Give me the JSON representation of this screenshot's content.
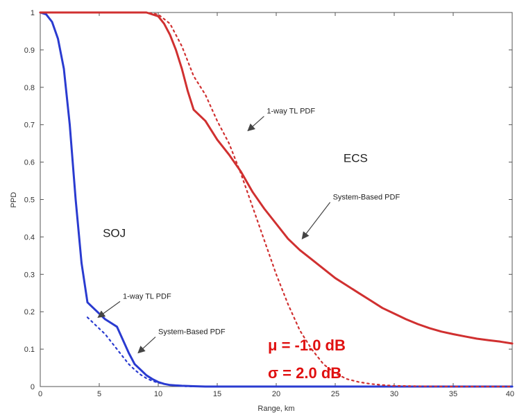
{
  "chart_data": {
    "type": "line",
    "title": "",
    "xlabel": "Range, km",
    "ylabel": "PPD",
    "xlim": [
      0,
      40
    ],
    "ylim": [
      0,
      1
    ],
    "xticks": [
      "0",
      "5",
      "10",
      "15",
      "20",
      "25",
      "30",
      "35",
      "40"
    ],
    "yticks": [
      "0",
      "0.1",
      "0.2",
      "0.3",
      "0.4",
      "0.5",
      "0.6",
      "0.7",
      "0.8",
      "0.9",
      "1"
    ],
    "grid": false,
    "series": [
      {
        "group": "SOJ",
        "style": "solid",
        "color": "#2a3bd0",
        "x": [
          0,
          0.5,
          1,
          1.5,
          2,
          2.5,
          3,
          3.5,
          4,
          4.5,
          5,
          5.5,
          6,
          6.5,
          7,
          7.5,
          8,
          8.5,
          9,
          9.5,
          10,
          10.5,
          11,
          12,
          13,
          14,
          16,
          20,
          30,
          40
        ],
        "y": [
          1,
          0.995,
          0.975,
          0.93,
          0.85,
          0.7,
          0.5,
          0.33,
          0.225,
          0.21,
          0.195,
          0.18,
          0.17,
          0.16,
          0.125,
          0.09,
          0.06,
          0.045,
          0.03,
          0.02,
          0.012,
          0.007,
          0.004,
          0.002,
          0.001,
          0,
          0,
          0,
          0,
          0
        ]
      },
      {
        "group": "SOJ",
        "style": "dotted",
        "color": "#2a3bd0",
        "x": [
          4,
          4.5,
          5,
          5.5,
          6,
          6.5,
          7,
          7.5,
          8,
          8.5,
          9,
          9.5,
          10,
          11,
          12,
          13
        ],
        "y": [
          0.185,
          0.17,
          0.155,
          0.14,
          0.12,
          0.1,
          0.08,
          0.06,
          0.045,
          0.032,
          0.022,
          0.015,
          0.01,
          0.004,
          0.001,
          0
        ]
      },
      {
        "group": "ECS",
        "style": "solid",
        "color": "#d03030",
        "x": [
          0,
          5,
          8,
          9,
          10,
          10.5,
          11,
          11.5,
          12,
          12.5,
          13,
          14,
          15,
          16,
          17,
          18,
          19,
          20,
          21,
          22,
          23,
          24,
          25,
          26,
          27,
          28,
          29,
          30,
          31,
          32,
          33,
          34,
          35,
          36,
          37,
          38,
          39,
          40
        ],
        "y": [
          1,
          1,
          1,
          1,
          0.99,
          0.97,
          0.94,
          0.9,
          0.85,
          0.79,
          0.74,
          0.71,
          0.66,
          0.62,
          0.575,
          0.52,
          0.475,
          0.435,
          0.395,
          0.365,
          0.34,
          0.315,
          0.29,
          0.27,
          0.25,
          0.23,
          0.21,
          0.195,
          0.18,
          0.167,
          0.156,
          0.147,
          0.14,
          0.134,
          0.128,
          0.124,
          0.12,
          0.115
        ]
      },
      {
        "group": "ECS",
        "style": "dotted",
        "color": "#d03030",
        "x": [
          0,
          8,
          9,
          10,
          11,
          12,
          13,
          14,
          15,
          16,
          17,
          18,
          19,
          20,
          21,
          22,
          23,
          24,
          25,
          26,
          27,
          28,
          29,
          30,
          32,
          35,
          40
        ],
        "y": [
          1,
          1,
          1,
          0.995,
          0.97,
          0.91,
          0.83,
          0.78,
          0.71,
          0.65,
          0.57,
          0.48,
          0.39,
          0.3,
          0.22,
          0.15,
          0.1,
          0.06,
          0.035,
          0.02,
          0.012,
          0.007,
          0.004,
          0.002,
          0.001,
          0,
          0
        ]
      }
    ],
    "annotations": [
      {
        "id": "ecs-tl",
        "text": "1-way TL PDF",
        "x": 19.2,
        "y": 0.73,
        "arrow_to": [
          17.6,
          0.684
        ]
      },
      {
        "id": "ecs-label",
        "text": "ECS",
        "x": 25.7,
        "y": 0.6
      },
      {
        "id": "ecs-sys",
        "text": "System-Based PDF",
        "x": 24.8,
        "y": 0.5,
        "arrow_to": [
          22.2,
          0.395
        ]
      },
      {
        "id": "soj-label",
        "text": "SOJ",
        "x": 5.3,
        "y": 0.4
      },
      {
        "id": "soj-tl",
        "text": "1-way TL PDF",
        "x": 7.0,
        "y": 0.235,
        "arrow_to": [
          4.9,
          0.185
        ]
      },
      {
        "id": "soj-sys",
        "text": "System-Based PDF",
        "x": 10.0,
        "y": 0.14,
        "arrow_to": [
          8.3,
          0.09
        ]
      }
    ],
    "params": {
      "mu": "μ = -1.0 dB",
      "sigma": "σ = 2.0 dB"
    }
  }
}
